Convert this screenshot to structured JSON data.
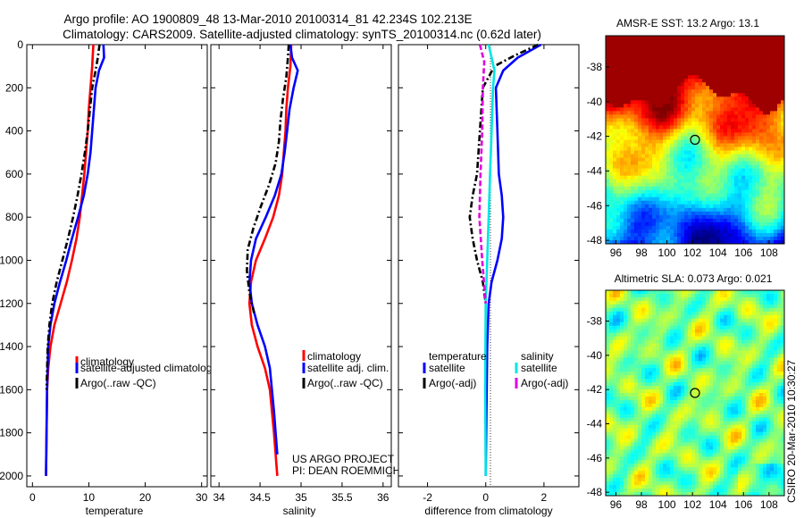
{
  "header": {
    "title_line1": "Argo profile: AO 1900809_48 13-Mar-2010 20100314_81 42.234S 102.213E",
    "title_line2": "Climatology: CARS2009. Satellite-adjusted climatology: synTS_20100314.nc (0.62d later)"
  },
  "footer_note": {
    "line1": "US ARGO PROJECT",
    "line2": "PI: DEAN ROEMMICH"
  },
  "side_stamp": "CSIRO 20-Mar-2010 10:30:27",
  "colors": {
    "climatology": "#ff0000",
    "satellite": "#0000ff",
    "argo": "#000000",
    "satellite_salinity": "#00e5e5",
    "argo_salinity": "#e000e0"
  },
  "chart_data": [
    {
      "id": "temperature",
      "type": "line",
      "xlabel": "temperature",
      "ylabel": "",
      "xlim": [
        -1,
        31
      ],
      "ylim": [
        2050,
        0
      ],
      "xticks": [
        "0",
        "10",
        "20",
        "30"
      ],
      "xtick_values": [
        0,
        10,
        20,
        30
      ],
      "yticks": [
        "0",
        "200",
        "400",
        "600",
        "800",
        "1000",
        "1200",
        "1400",
        "1600",
        "1800",
        "2000"
      ],
      "ytick_values": [
        0,
        200,
        400,
        600,
        800,
        1000,
        1200,
        1400,
        1600,
        1800,
        2000
      ],
      "legend": [
        {
          "label": "climatology",
          "color": "#ff0000"
        },
        {
          "label": "satellite-adjusted climatology",
          "color": "#0000ff"
        },
        {
          "label": "Argo(..raw -QC)",
          "color": "#000000"
        }
      ],
      "series": [
        {
          "name": "climatology",
          "color": "#ff0000",
          "dash": "none",
          "x": [
            10.8,
            10.6,
            10.3,
            10.0,
            9.8,
            9.5,
            9.2,
            8.8,
            8.4,
            7.8,
            7.0,
            6.1,
            5.0,
            3.9,
            3.2,
            2.8,
            2.6,
            2.5,
            2.4
          ],
          "y": [
            0,
            100,
            200,
            300,
            400,
            500,
            600,
            700,
            800,
            900,
            1000,
            1100,
            1200,
            1300,
            1400,
            1500,
            1600,
            1800,
            2000
          ]
        },
        {
          "name": "satellite-adjusted climatology",
          "color": "#0000ff",
          "dash": "none",
          "x": [
            12.6,
            12.7,
            11.8,
            11.2,
            10.9,
            10.6,
            10.3,
            9.8,
            9.1,
            8.1,
            7.0,
            6.0,
            4.9,
            3.9,
            3.2,
            2.8,
            2.6,
            2.5,
            2.4
          ],
          "y": [
            0,
            60,
            120,
            200,
            300,
            400,
            500,
            600,
            700,
            800,
            900,
            1000,
            1100,
            1200,
            1300,
            1400,
            1600,
            1800,
            2000
          ]
        },
        {
          "name": "Argo(..raw -QC)",
          "color": "#000000",
          "dash": "7,3,2,3",
          "x": [
            11.9,
            11.6,
            11.2,
            10.6,
            10.2,
            9.8,
            9.3,
            8.7,
            8.0,
            7.2,
            6.3,
            5.3,
            4.3,
            3.5,
            3.0,
            2.7,
            2.5
          ],
          "y": [
            0,
            60,
            120,
            200,
            300,
            400,
            500,
            600,
            700,
            800,
            900,
            1000,
            1100,
            1200,
            1300,
            1400,
            1600
          ]
        }
      ]
    },
    {
      "id": "salinity",
      "type": "line",
      "xlabel": "salinity",
      "ylabel": "",
      "xlim": [
        33.9,
        36.1
      ],
      "ylim": [
        2050,
        0
      ],
      "xticks": [
        "34",
        "34.5",
        "35",
        "35.5",
        "36"
      ],
      "xtick_values": [
        34,
        34.5,
        35,
        35.5,
        36
      ],
      "legend": [
        {
          "label": "climatology",
          "color": "#ff0000"
        },
        {
          "label": "satellite adj. clim.",
          "color": "#0000ff"
        },
        {
          "label": "Argo(..raw -QC)",
          "color": "#000000"
        }
      ],
      "series": [
        {
          "name": "climatology",
          "color": "#ff0000",
          "dash": "none",
          "x": [
            34.88,
            34.87,
            34.84,
            34.82,
            34.81,
            34.79,
            34.77,
            34.73,
            34.66,
            34.56,
            34.45,
            34.39,
            34.37,
            34.4,
            34.47,
            34.56,
            34.62,
            34.67,
            34.71
          ],
          "y": [
            0,
            100,
            200,
            300,
            400,
            500,
            600,
            700,
            800,
            900,
            1000,
            1100,
            1200,
            1300,
            1400,
            1500,
            1600,
            1800,
            2000
          ]
        },
        {
          "name": "satellite adj. clim.",
          "color": "#0000ff",
          "dash": "none",
          "x": [
            34.87,
            34.89,
            34.96,
            34.91,
            34.86,
            34.83,
            34.8,
            34.76,
            34.68,
            34.57,
            34.45,
            34.39,
            34.37,
            34.4,
            34.47,
            34.56,
            34.62,
            34.67,
            34.71
          ],
          "y": [
            0,
            60,
            120,
            200,
            300,
            400,
            500,
            600,
            700,
            800,
            900,
            1000,
            1100,
            1200,
            1300,
            1400,
            1500,
            1700,
            1900
          ]
        },
        {
          "name": "Argo(..raw -QC)",
          "color": "#000000",
          "dash": "7,3,2,3",
          "x": [
            34.85,
            34.84,
            34.82,
            34.78,
            34.75,
            34.73,
            34.69,
            34.61,
            34.51,
            34.42,
            34.35,
            34.34,
            34.37,
            34.43
          ],
          "y": [
            0,
            60,
            150,
            250,
            350,
            450,
            550,
            650,
            750,
            850,
            950,
            1050,
            1150,
            1250
          ]
        }
      ]
    },
    {
      "id": "difference",
      "type": "line",
      "xlabel": "difference from climatology",
      "ylabel": "",
      "xlim": [
        -3,
        3.2
      ],
      "ylim": [
        2050,
        0
      ],
      "xticks": [
        "-2",
        "0",
        "2"
      ],
      "xtick_values": [
        -2,
        0,
        2
      ],
      "legend_groups": [
        {
          "title": "temperature",
          "items": [
            {
              "label": "satellite",
              "color": "#0000ff"
            },
            {
              "label": "Argo(-adj)",
              "color": "#000000"
            }
          ]
        },
        {
          "title": "salinity",
          "items": [
            {
              "label": "satellite",
              "color": "#00e5e5"
            },
            {
              "label": "Argo(-adj)",
              "color": "#e000e0"
            }
          ]
        }
      ],
      "series": [
        {
          "name": "temperature satellite",
          "color": "#0000ff",
          "dash": "none",
          "x": [
            1.9,
            1.1,
            0.6,
            0.35,
            0.4,
            0.45,
            0.55,
            0.6,
            0.55,
            0.4,
            0.2,
            0.1,
            0.05,
            0.0
          ],
          "y": [
            0,
            60,
            120,
            200,
            400,
            600,
            700,
            800,
            900,
            1000,
            1100,
            1200,
            1400,
            2000
          ]
        },
        {
          "name": "temperature Argo(-adj)",
          "color": "#000000",
          "dash": "7,3,2,3",
          "x": [
            1.8,
            1.0,
            0.3,
            -0.1,
            -0.2,
            -0.3,
            -0.45,
            -0.55,
            -0.45,
            -0.3,
            -0.1,
            0.0
          ],
          "y": [
            0,
            50,
            100,
            200,
            400,
            600,
            700,
            800,
            900,
            1000,
            1100,
            1200
          ]
        },
        {
          "name": "salinity satellite",
          "color": "#00e5e5",
          "dash": "none",
          "x": [
            0.1,
            0.2,
            0.3,
            0.25,
            0.2,
            0.15,
            0.1,
            0.05,
            0.0,
            -0.02,
            0.0
          ],
          "y": [
            0,
            60,
            120,
            200,
            400,
            600,
            800,
            1000,
            1200,
            1600,
            2000
          ]
        },
        {
          "name": "salinity Argo(-adj)",
          "color": "#e000e0",
          "dash": "6,3",
          "x": [
            -0.2,
            -0.05,
            -0.1,
            -0.12,
            -0.18,
            -0.22,
            -0.12,
            0.0
          ],
          "y": [
            0,
            80,
            200,
            400,
            600,
            800,
            1000,
            1200
          ]
        }
      ]
    },
    {
      "id": "sst-map",
      "type": "heatmap",
      "title": "AMSR-E SST: 13.2  Argo: 13.1",
      "xticks": [
        "96",
        "98",
        "100",
        "102",
        "104",
        "106",
        "108"
      ],
      "xtick_values": [
        96,
        98,
        100,
        102,
        104,
        106,
        108
      ],
      "yticks": [
        "-38",
        "-40",
        "-42",
        "-44",
        "-46",
        "-48"
      ],
      "ytick_values": [
        -38,
        -40,
        -42,
        -44,
        -46,
        -48
      ],
      "xlim": [
        95.2,
        109.2
      ],
      "ylim": [
        -48.2,
        -36.2
      ],
      "marker": {
        "lon": 102.2,
        "lat": -42.2
      },
      "color_scheme": "jet",
      "gradient_description": "warm north to cold south"
    },
    {
      "id": "sla-map",
      "type": "heatmap",
      "title": "Altimetric SLA: 0.073  Argo: 0.021",
      "xticks": [
        "96",
        "98",
        "100",
        "102",
        "104",
        "106",
        "108"
      ],
      "xtick_values": [
        96,
        98,
        100,
        102,
        104,
        106,
        108
      ],
      "yticks": [
        "-38",
        "-40",
        "-42",
        "-44",
        "-46",
        "-48"
      ],
      "ytick_values": [
        -38,
        -40,
        -42,
        -44,
        -46,
        -48
      ],
      "xlim": [
        95.2,
        109.2
      ],
      "ylim": [
        -48.2,
        -36.2
      ],
      "marker": {
        "lon": 102.2,
        "lat": -42.2
      },
      "color_scheme": "jet"
    }
  ]
}
